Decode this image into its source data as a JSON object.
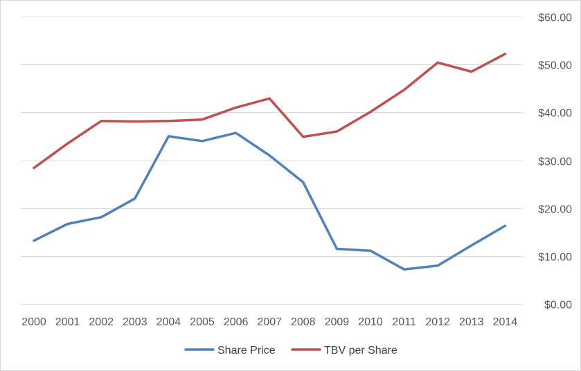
{
  "chart_data": {
    "type": "line",
    "title": "",
    "xlabel": "",
    "ylabel": "",
    "categories": [
      "2000",
      "2001",
      "2002",
      "2003",
      "2004",
      "2005",
      "2006",
      "2007",
      "2008",
      "2009",
      "2010",
      "2011",
      "2012",
      "2013",
      "2014"
    ],
    "ylim": [
      0,
      60
    ],
    "yticks": [
      0,
      10,
      20,
      30,
      40,
      50,
      60
    ],
    "ytick_labels": [
      "$0.00",
      "$10.00",
      "$20.00",
      "$30.00",
      "$40.00",
      "$50.00",
      "$60.00"
    ],
    "y_axis_side": "right",
    "grid": true,
    "legend_position": "bottom",
    "series": [
      {
        "name": "Share Price",
        "color": "#4f81bd",
        "values": [
          13.2,
          16.7,
          18.1,
          22.0,
          35.0,
          34.0,
          35.7,
          31.0,
          25.4,
          11.5,
          11.1,
          7.2,
          8.0,
          12.2,
          16.3
        ]
      },
      {
        "name": "TBV per Share",
        "color": "#c0504d",
        "values": [
          28.4,
          33.5,
          38.2,
          38.1,
          38.2,
          38.5,
          41.0,
          42.9,
          34.9,
          36.0,
          40.1,
          44.7,
          50.4,
          48.5,
          52.2
        ]
      }
    ]
  }
}
